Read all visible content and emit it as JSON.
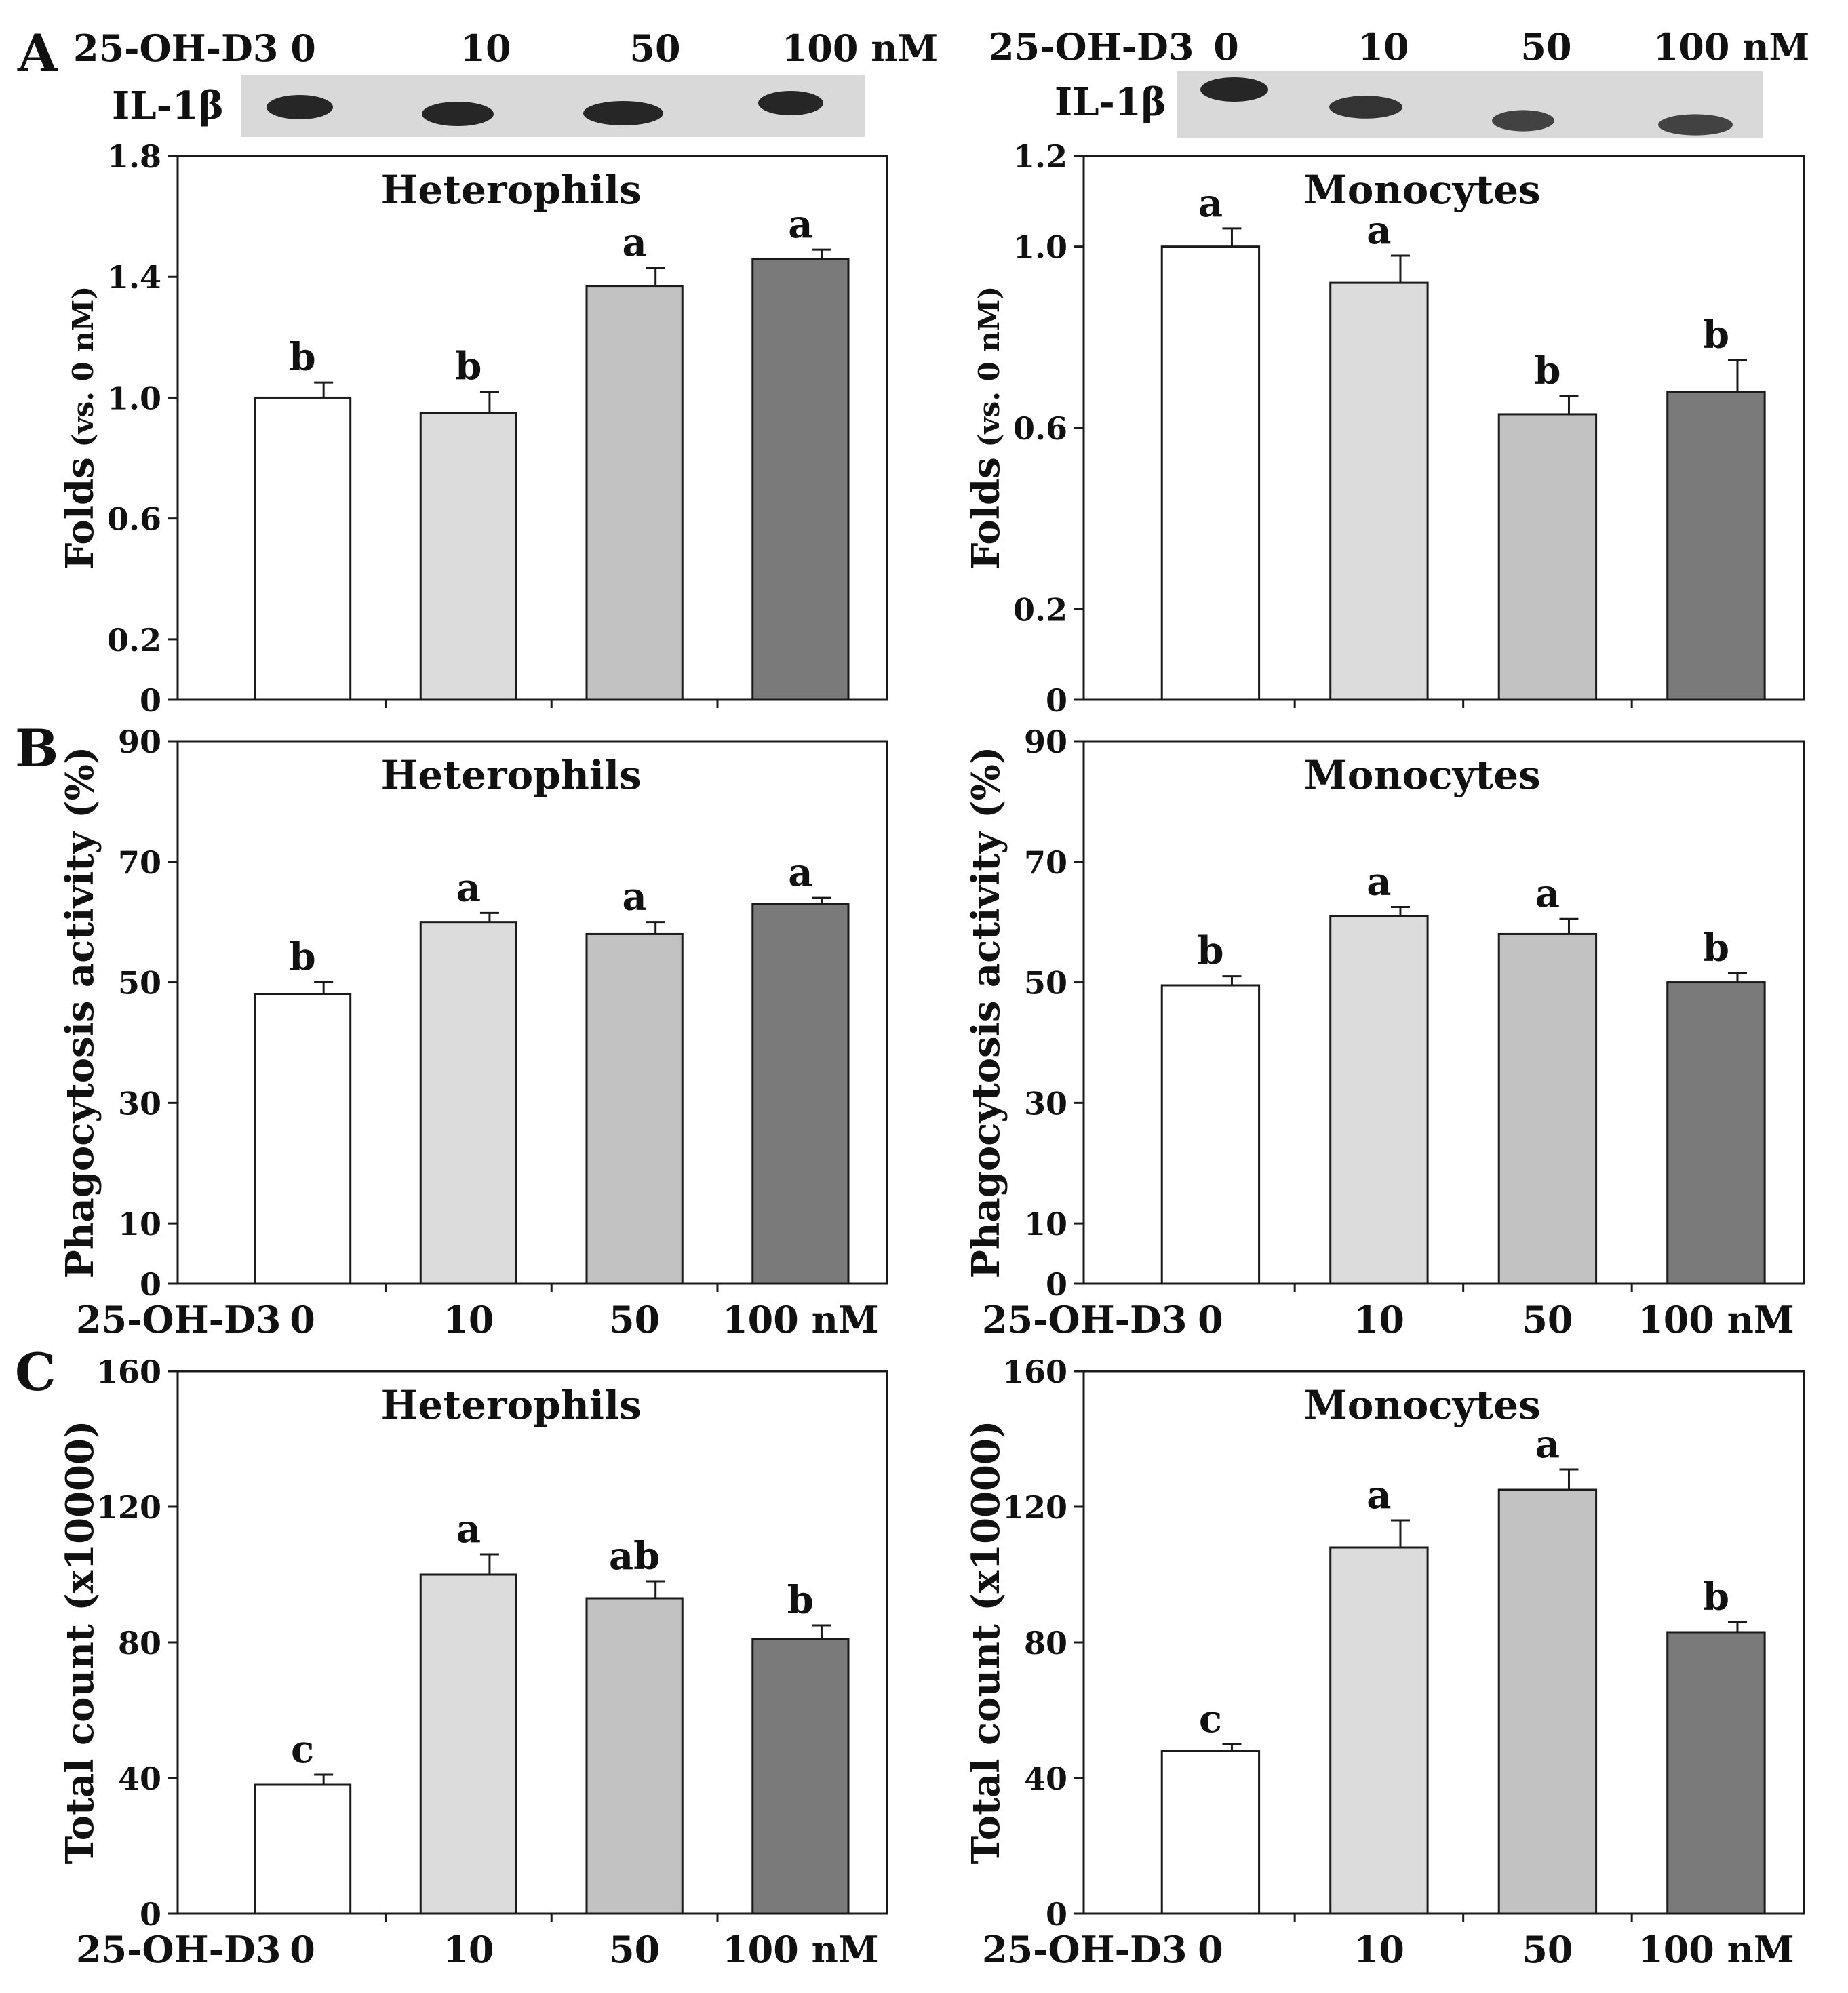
{
  "figure": {
    "panel_letters": [
      "A",
      "B",
      "C"
    ],
    "treatment_label": "25-OH-D3",
    "doses": [
      "0",
      "10",
      "50",
      "100 nM"
    ],
    "blot_label": "IL-1β",
    "colors": {
      "fills": [
        "#ffffff",
        "#dcdcdc",
        "#c2c2c2",
        "#7a7a7a"
      ],
      "axis": "#1a1a1a",
      "blot_bg": "#d9d9d9",
      "band": "#1c1c1c"
    }
  },
  "blots": [
    {
      "cell": "Heterophils",
      "band_intensity": [
        1.0,
        1.0,
        1.0,
        1.0
      ]
    },
    {
      "cell": "Monocytes",
      "band_intensity": [
        1.0,
        0.85,
        0.7,
        0.7
      ]
    }
  ],
  "chart_data": [
    {
      "id": "A-heterophils",
      "panel": "A",
      "type": "bar",
      "title": "Heterophils",
      "ylabel": "Folds",
      "ylabel_sub": "(vs. 0 nM)",
      "categories": [
        "0",
        "10",
        "50",
        "100"
      ],
      "values": [
        1.0,
        0.95,
        1.37,
        1.46
      ],
      "errors": [
        0.05,
        0.07,
        0.06,
        0.03
      ],
      "letters": [
        "b",
        "b",
        "a",
        "a"
      ],
      "ylim": [
        0,
        1.8
      ],
      "yticks": [
        0,
        0.2,
        0.6,
        1.0,
        1.4,
        1.8
      ],
      "ytick_labels": [
        "0",
        "0.2",
        "0.6",
        "1.0",
        "1.4",
        "1.8"
      ],
      "show_x_labels": false
    },
    {
      "id": "A-monocytes",
      "panel": "A",
      "type": "bar",
      "title": "Monocytes",
      "ylabel": "Folds",
      "ylabel_sub": "(vs. 0 nM)",
      "categories": [
        "0",
        "10",
        "50",
        "100"
      ],
      "values": [
        1.0,
        0.92,
        0.63,
        0.68
      ],
      "errors": [
        0.04,
        0.06,
        0.04,
        0.07
      ],
      "letters": [
        "a",
        "a",
        "b",
        "b"
      ],
      "ylim": [
        0,
        1.2
      ],
      "yticks": [
        0,
        0.2,
        0.6,
        1.0,
        1.2
      ],
      "ytick_labels": [
        "0",
        "0.2",
        "0.6",
        "1.0",
        "1.2"
      ],
      "show_x_labels": false
    },
    {
      "id": "B-heterophils",
      "panel": "B",
      "type": "bar",
      "title": "Heterophils",
      "ylabel": "Phagocytosis activity (%)",
      "ylabel_sub": "",
      "categories": [
        "0",
        "10",
        "50",
        "100"
      ],
      "values": [
        48,
        60,
        58,
        63
      ],
      "errors": [
        2,
        1.5,
        2,
        1
      ],
      "letters": [
        "b",
        "a",
        "a",
        "a"
      ],
      "ylim": [
        0,
        90
      ],
      "yticks": [
        0,
        10,
        30,
        50,
        70,
        90
      ],
      "ytick_labels": [
        "0",
        "10",
        "30",
        "50",
        "70",
        "90"
      ],
      "show_x_labels": true
    },
    {
      "id": "B-monocytes",
      "panel": "B",
      "type": "bar",
      "title": "Monocytes",
      "ylabel": "Phagocytosis activity (%)",
      "ylabel_sub": "",
      "categories": [
        "0",
        "10",
        "50",
        "100"
      ],
      "values": [
        49.5,
        61,
        58,
        50
      ],
      "errors": [
        1.5,
        1.5,
        2.5,
        1.5
      ],
      "letters": [
        "b",
        "a",
        "a",
        "b"
      ],
      "ylim": [
        0,
        90
      ],
      "yticks": [
        0,
        10,
        30,
        50,
        70,
        90
      ],
      "ytick_labels": [
        "0",
        "10",
        "30",
        "50",
        "70",
        "90"
      ],
      "show_x_labels": true
    },
    {
      "id": "C-heterophils",
      "panel": "C",
      "type": "bar",
      "title": "Heterophils",
      "ylabel": "Total count (x10000)",
      "ylabel_sub": "",
      "categories": [
        "0",
        "10",
        "50",
        "100"
      ],
      "values": [
        38,
        100,
        93,
        81
      ],
      "errors": [
        3,
        6,
        5,
        4
      ],
      "letters": [
        "c",
        "a",
        "ab",
        "b"
      ],
      "ylim": [
        0,
        160
      ],
      "yticks": [
        0,
        40,
        80,
        120,
        160
      ],
      "ytick_labels": [
        "0",
        "40",
        "80",
        "120",
        "160"
      ],
      "show_x_labels": true
    },
    {
      "id": "C-monocytes",
      "panel": "C",
      "type": "bar",
      "title": "Monocytes",
      "ylabel": "Total count (x10000)",
      "ylabel_sub": "",
      "categories": [
        "0",
        "10",
        "50",
        "100"
      ],
      "values": [
        48,
        108,
        125,
        83
      ],
      "errors": [
        2,
        8,
        6,
        3
      ],
      "letters": [
        "c",
        "a",
        "a",
        "b"
      ],
      "ylim": [
        0,
        160
      ],
      "yticks": [
        0,
        40,
        80,
        120,
        160
      ],
      "ytick_labels": [
        "0",
        "40",
        "80",
        "120",
        "160"
      ],
      "show_x_labels": true
    }
  ]
}
